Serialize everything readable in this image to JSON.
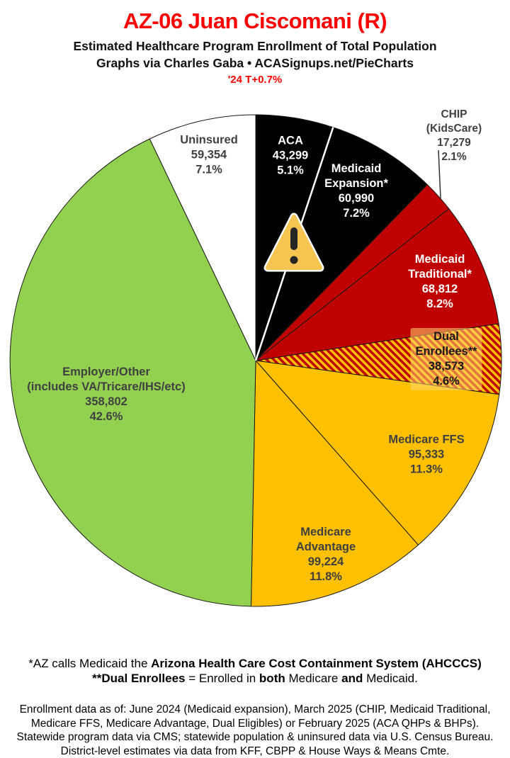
{
  "header": {
    "title": "AZ-06 Juan Ciscomani (R)",
    "subtitle": "Estimated Healthcare Program Enrollment of Total Population",
    "byline": "Graphs via Charles Gaba  •  ACASignups.net/PieCharts",
    "trend": "'24 T+0.7%",
    "title_color": "#FF0000"
  },
  "chart_data": {
    "type": "pie",
    "title": "AZ-06 Juan Ciscomani (R) — Estimated Healthcare Program Enrollment of Total Population",
    "rotation": "clockwise starting at 12 o'clock",
    "total_pct": 100.0,
    "slices": [
      {
        "id": "aca",
        "name": "ACA",
        "value": 43299,
        "pct": 5.1,
        "color": "#000000",
        "label_color": "#FFFFFF",
        "label": "ACA\n43,299\n5.1%"
      },
      {
        "id": "medicaid-expansion",
        "name": "Medicaid Expansion*",
        "value": 60990,
        "pct": 7.2,
        "color": "#000000",
        "label_color": "#FFFFFF",
        "label": "Medicaid\nExpansion*\n60,990\n7.2%"
      },
      {
        "id": "chip",
        "name": "CHIP (KidsCare)",
        "value": 17279,
        "pct": 2.1,
        "color": "#C00000",
        "label_color": "#404040",
        "label_outside": true,
        "label": "CHIP (KidsCare)\n17,279 2.1%"
      },
      {
        "id": "medicaid-traditional",
        "name": "Medicaid Traditional*",
        "value": 68812,
        "pct": 8.2,
        "color": "#C00000",
        "label_color": "#FFFFFF",
        "label": "Medicaid\nTraditional*\n68,812\n8.2%"
      },
      {
        "id": "dual-enrollees",
        "name": "Dual Enrollees**",
        "value": 38573,
        "pct": 4.6,
        "color": "#C00000",
        "hatch": true,
        "hatch_color": "#FFC000",
        "label_color": "#1a1a1a",
        "label": "Dual Enrollees**\n38,573 4.6%"
      },
      {
        "id": "medicare-ffs",
        "name": "Medicare FFS",
        "value": 95333,
        "pct": 11.3,
        "color": "#FFC000",
        "label_color": "#404040",
        "label": "Medicare FFS\n95,333\n11.3%"
      },
      {
        "id": "medicare-advantage",
        "name": "Medicare Advantage",
        "value": 99224,
        "pct": 11.8,
        "color": "#FFC000",
        "label_color": "#404040",
        "label": "Medicare\nAdvantage\n99,224\n11.8%"
      },
      {
        "id": "employer-other",
        "name": "Employer/Other (includes VA/Tricare/IHS/etc)",
        "value": 358802,
        "pct": 42.6,
        "color": "#92D050",
        "label_color": "#404040",
        "label": "Employer/Other\n(includes VA/Tricare/IHS/etc)\n358,802\n42.6%"
      },
      {
        "id": "uninsured",
        "name": "Uninsured",
        "value": 59354,
        "pct": 7.1,
        "color": "#FFFFFF",
        "label_color": "#404040",
        "label": "Uninsured\n59,354\n7.1%"
      }
    ],
    "icons": {
      "warning_icon": "amber rounded triangle with exclamation mark over ACA/Medicaid Expansion slices"
    }
  },
  "footer": {
    "note1_runs": [
      {
        "t": "*AZ calls Medicaid the ",
        "b": false
      },
      {
        "t": "Arizona Health Care Cost Containment System (AHCCCS)",
        "b": true
      }
    ],
    "note2_runs": [
      {
        "t": "**Dual Enrollees",
        "b": true
      },
      {
        "t": " = Enrolled in ",
        "b": false
      },
      {
        "t": "both",
        "b": true
      },
      {
        "t": " Medicare ",
        "b": false
      },
      {
        "t": "and",
        "b": true
      },
      {
        "t": " Medicaid.",
        "b": false
      }
    ],
    "small_lines": [
      "Enrollment data as of: June 2024 (Medicaid expansion), March 2025 (CHIP, Medicaid Traditional,",
      "Medicare FFS, Medicare Advantage, Dual Eligibles) or February 2025 (ACA QHPs & BHPs).",
      "Statewide program data via CMS; statewide population & uninsured data via U.S. Census Bureau.",
      "District-level estimates via data from KFF, CBPP & House Ways & Means Cmte."
    ]
  }
}
